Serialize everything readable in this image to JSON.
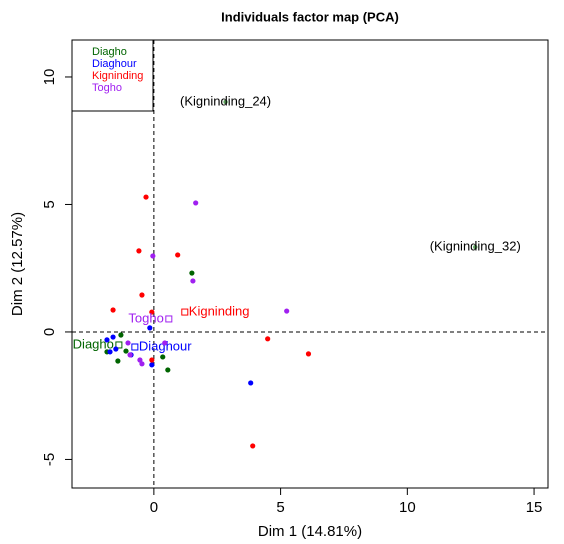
{
  "chart_data": {
    "type": "scatter",
    "title": "Individuals factor map (PCA)",
    "x_label": "Dim 1 (14.81%)",
    "y_label": "Dim 2 (12.57%)",
    "xlim": [
      -3.23,
      15.55
    ],
    "ylim": [
      -6.12,
      11.45
    ],
    "xticks": [
      0,
      5,
      10,
      15
    ],
    "yticks": [
      -5,
      0,
      5,
      10
    ],
    "vline": 0,
    "hline": 0,
    "legend": "top-left",
    "series": [
      {
        "name": "Diagho",
        "color": "#006400",
        "x": [
          1.5,
          -1.3,
          -1.42,
          0.55,
          0.35,
          -1.85,
          -1.1
        ],
        "y": [
          2.31,
          -0.12,
          -1.14,
          -1.49,
          -0.98,
          -0.78,
          -0.75
        ],
        "centroid": [
          -1.38,
          -0.51
        ]
      },
      {
        "name": "Diaghour",
        "color": "#0000ff",
        "x": [
          -0.16,
          -1.61,
          -1.5,
          -1.85,
          -0.08,
          3.82,
          -0.9,
          -1.73
        ],
        "y": [
          0.16,
          -0.2,
          -0.67,
          -0.31,
          -1.29,
          -2.0,
          -0.9,
          -0.78
        ],
        "centroid": [
          -0.75,
          -0.59
        ]
      },
      {
        "name": "Kigninding",
        "color": "#ff0000",
        "x": [
          -0.31,
          -0.59,
          0.94,
          -0.47,
          -1.61,
          -0.08,
          4.49,
          6.1,
          3.9,
          -0.08
        ],
        "y": [
          5.29,
          3.18,
          3.02,
          1.45,
          0.86,
          0.78,
          -0.27,
          -0.86,
          -4.47,
          -1.1
        ],
        "centroid": [
          1.22,
          0.78
        ]
      },
      {
        "name": "Togho",
        "color": "#a020f0",
        "x": [
          1.65,
          -0.04,
          1.54,
          5.24,
          -1.02,
          -0.55,
          -0.47,
          0.43,
          -0.94
        ],
        "y": [
          5.06,
          2.98,
          2.0,
          0.82,
          -0.43,
          -1.1,
          -1.25,
          -0.43,
          -0.9
        ],
        "centroid": [
          0.59,
          0.51
        ]
      }
    ],
    "labeled_points": [
      {
        "label": "(Kigninding_24)",
        "x": 2.83,
        "y": 9.02,
        "color": "#5fa35f"
      },
      {
        "label": "(Kigninding_32)",
        "x": 12.68,
        "y": 3.33,
        "color": "#5fa35f"
      }
    ]
  }
}
